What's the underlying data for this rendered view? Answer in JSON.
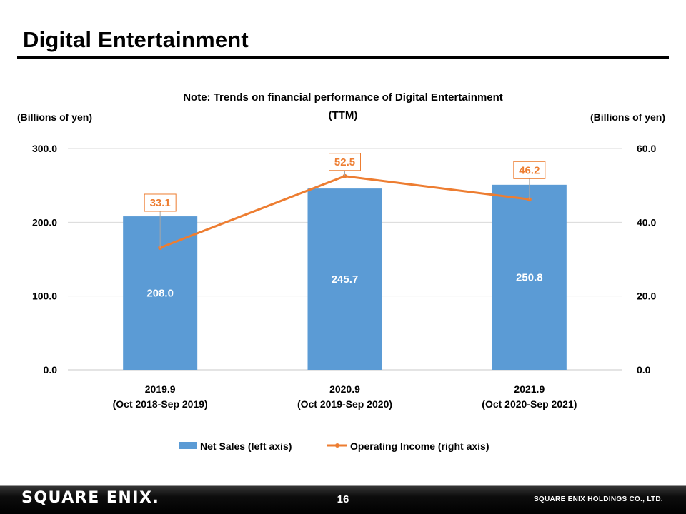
{
  "page": {
    "title": "Digital Entertainment",
    "page_number": "16",
    "logo_text": "SQUARE ENIX.",
    "company": "SQUARE ENIX HOLDINGS CO., LTD."
  },
  "chart_data": {
    "type": "bar+line",
    "title": "Note: Trends on financial performance of Digital Entertainment",
    "title_line2": "(TTM)",
    "ylabel_left": "(Billions of yen)",
    "ylabel_right": "(Billions of yen)",
    "categories": [
      {
        "line1": "2019.9",
        "line2": "(Oct 2018-Sep 2019)"
      },
      {
        "line1": "2020.9",
        "line2": "(Oct 2019-Sep 2020)"
      },
      {
        "line1": "2021.9",
        "line2": "(Oct 2020-Sep 2021)"
      }
    ],
    "ylim_left": [
      0,
      300
    ],
    "ylim_right": [
      0,
      60
    ],
    "left_ticks": [
      "0.0",
      "100.0",
      "200.0",
      "300.0"
    ],
    "right_ticks": [
      "0.0",
      "20.0",
      "40.0",
      "60.0"
    ],
    "grid": true,
    "legend_position": "bottom",
    "series": [
      {
        "name": "Net Sales (left axis)",
        "type": "bar",
        "axis": "left",
        "color": "#5B9BD5",
        "values": [
          208.0,
          245.7,
          250.8
        ],
        "labels": [
          "208.0",
          "245.7",
          "250.8"
        ]
      },
      {
        "name": "Operating Income (right axis)",
        "type": "line",
        "axis": "right",
        "color": "#ED7D31",
        "values": [
          33.1,
          52.5,
          46.2
        ],
        "labels": [
          "33.1",
          "52.5",
          "46.2"
        ]
      }
    ]
  }
}
